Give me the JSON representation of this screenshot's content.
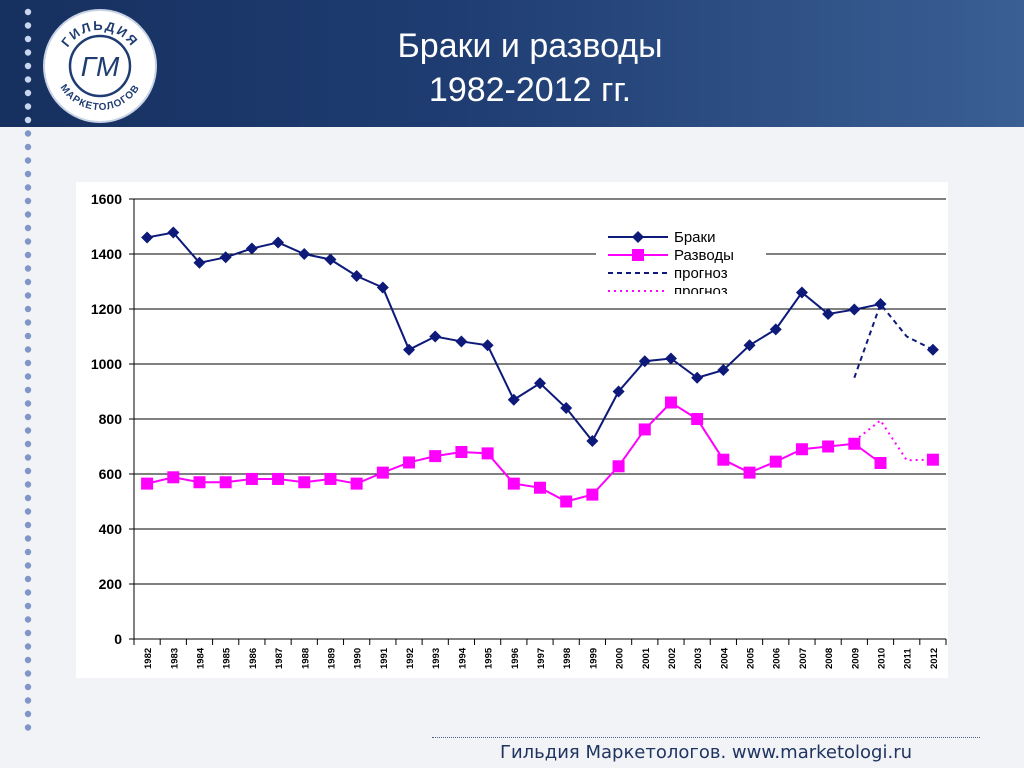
{
  "header": {
    "title_line1": "Браки и разводы",
    "title_line2": "1982-2012 гг.",
    "logo_text_top": "ГИЛЬДИЯ",
    "logo_text_bottom": "МАРКЕТОЛОГОВ",
    "logo_monogram": "ГМ"
  },
  "footer": {
    "text": "Гильдия Маркетологов. www.marketologi.ru"
  },
  "colors": {
    "header_bg": "#1f3d72",
    "marriage": "#0d1a7a",
    "divorce": "#ff00ff",
    "grid": "#000000"
  },
  "chart_data": {
    "type": "line",
    "categories": [
      "1982",
      "1983",
      "1984",
      "1985",
      "1986",
      "1987",
      "1988",
      "1989",
      "1990",
      "1991",
      "1992",
      "1993",
      "1994",
      "1995",
      "1996",
      "1997",
      "1998",
      "1999",
      "2000",
      "2001",
      "2002",
      "2003",
      "2004",
      "2005",
      "2006",
      "2007",
      "2008",
      "2009",
      "2010",
      "2011",
      "2012"
    ],
    "ylim": [
      0,
      1600
    ],
    "yticks": [
      "0",
      "200",
      "400",
      "600",
      "800",
      "1000",
      "1200",
      "1400",
      "1600"
    ],
    "grid": true,
    "legend": "top-right",
    "series": [
      {
        "name": "Браки",
        "marker": "diamond",
        "values": [
          1460,
          1478,
          1368,
          1388,
          1420,
          1442,
          1400,
          1380,
          1320,
          1278,
          1052,
          1100,
          1082,
          1068,
          870,
          930,
          840,
          720,
          900,
          1010,
          1020,
          950,
          978,
          1068,
          1126,
          1260,
          1182,
          1198,
          1218,
          null,
          1052
        ]
      },
      {
        "name": "Разводы",
        "marker": "square",
        "values": [
          565,
          588,
          570,
          570,
          582,
          582,
          570,
          582,
          565,
          605,
          642,
          665,
          680,
          675,
          565,
          550,
          500,
          525,
          628,
          762,
          860,
          800,
          652,
          605,
          645,
          690,
          700,
          710,
          640,
          null,
          652
        ]
      },
      {
        "name": "прогноз",
        "style": "dashed",
        "color_key": "marriage",
        "x": [
          "2009",
          "2010",
          "2011",
          "2012"
        ],
        "values": [
          950,
          1218,
          1100,
          1052
        ]
      },
      {
        "name": "прогноз",
        "style": "dotted",
        "color_key": "divorce",
        "x": [
          "2009",
          "2010",
          "2011",
          "2012"
        ],
        "values": [
          720,
          795,
          650,
          652
        ]
      }
    ]
  }
}
